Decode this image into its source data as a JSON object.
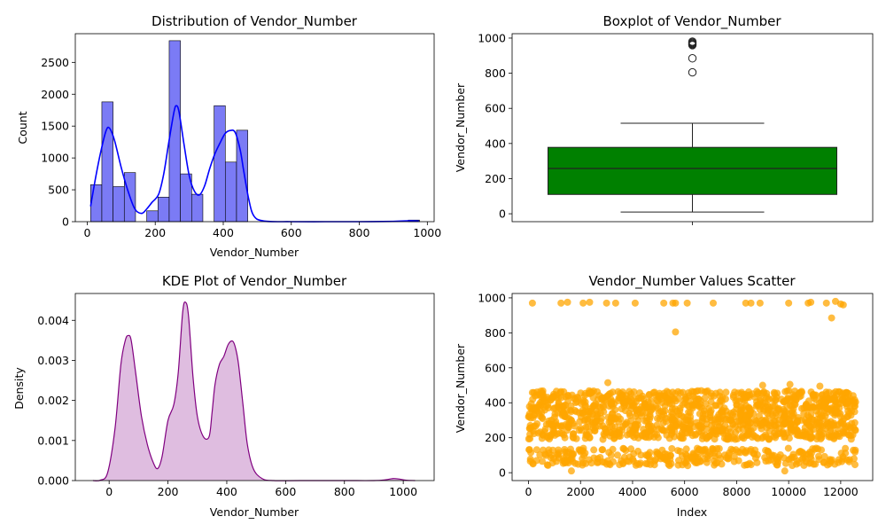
{
  "colors": {
    "hist_bar": "#7b7bf5",
    "hist_kde_line": "#0000ff",
    "box_fill": "#008000",
    "kde_fill": "#dfbde0",
    "kde_line": "#800080",
    "scatter_point": "#ffa500"
  },
  "chart_data": [
    {
      "type": "histogram",
      "title": "Distribution of Vendor_Number",
      "xlabel": "Vendor_Number",
      "ylabel": "Count",
      "xlim": [
        -35,
        1020
      ],
      "ylim": [
        0,
        2950
      ],
      "x_ticks": [
        0,
        200,
        400,
        600,
        800,
        1000
      ],
      "y_ticks": [
        0,
        500,
        1000,
        1500,
        2000,
        2500
      ],
      "bins": [
        {
          "x0": 10,
          "x1": 43,
          "count": 580
        },
        {
          "x0": 43,
          "x1": 76,
          "count": 1880
        },
        {
          "x0": 76,
          "x1": 109,
          "count": 550
        },
        {
          "x0": 109,
          "x1": 142,
          "count": 770
        },
        {
          "x0": 175,
          "x1": 208,
          "count": 170
        },
        {
          "x0": 208,
          "x1": 241,
          "count": 385
        },
        {
          "x0": 241,
          "x1": 274,
          "count": 2840
        },
        {
          "x0": 274,
          "x1": 307,
          "count": 750
        },
        {
          "x0": 307,
          "x1": 340,
          "count": 430
        },
        {
          "x0": 373,
          "x1": 406,
          "count": 1820
        },
        {
          "x0": 406,
          "x1": 439,
          "count": 935
        },
        {
          "x0": 439,
          "x1": 472,
          "count": 1435
        },
        {
          "x0": 944,
          "x1": 977,
          "count": 25
        }
      ],
      "kde_curve": {
        "x": [
          10,
          25,
          40,
          55,
          65,
          80,
          100,
          120,
          140,
          160,
          175,
          190,
          210,
          225,
          240,
          255,
          262,
          270,
          285,
          300,
          315,
          330,
          345,
          360,
          375,
          390,
          405,
          420,
          435,
          450,
          460,
          475,
          490,
          520,
          600,
          700,
          800,
          900,
          950,
          975
        ],
        "y": [
          240,
          700,
          1100,
          1420,
          1470,
          1280,
          850,
          480,
          200,
          130,
          200,
          300,
          430,
          750,
          1250,
          1720,
          1820,
          1720,
          1200,
          720,
          480,
          420,
          560,
          830,
          1060,
          1230,
          1380,
          1430,
          1400,
          1120,
          800,
          350,
          90,
          10,
          0,
          0,
          0,
          5,
          15,
          10
        ]
      }
    },
    {
      "type": "boxplot",
      "title": "Boxplot of Vendor_Number",
      "ylabel": "Vendor_Number",
      "ylim": [
        -45,
        1025
      ],
      "y_ticks": [
        0,
        200,
        400,
        600,
        800,
        1000
      ],
      "stats": {
        "min": 10,
        "q1": 110,
        "median": 258,
        "q3": 378,
        "max": 515
      },
      "outliers": [
        805,
        885,
        960,
        965,
        970,
        975,
        980
      ]
    },
    {
      "type": "area",
      "title": "KDE Plot of Vendor_Number",
      "xlabel": "Vendor_Number",
      "ylabel": "Density",
      "xlim": [
        -115,
        1105
      ],
      "ylim": [
        0,
        0.00467
      ],
      "x_ticks": [
        0,
        200,
        400,
        600,
        800,
        1000
      ],
      "y_ticks": [
        0.0,
        0.001,
        0.002,
        0.003,
        0.004
      ],
      "y_tick_labels": [
        "0.000",
        "0.001",
        "0.002",
        "0.003",
        "0.004"
      ],
      "x": [
        -55,
        -30,
        -5,
        20,
        40,
        55,
        65,
        75,
        90,
        110,
        130,
        150,
        165,
        180,
        200,
        220,
        235,
        250,
        260,
        270,
        285,
        300,
        320,
        340,
        350,
        360,
        375,
        390,
        405,
        420,
        430,
        440,
        455,
        470,
        490,
        520,
        560,
        650,
        800,
        900,
        940,
        965,
        985,
        1010,
        1040
      ],
      "y": [
        0.0,
        1e-05,
        0.0002,
        0.0013,
        0.0029,
        0.0035,
        0.00362,
        0.0035,
        0.0027,
        0.0016,
        0.0009,
        0.00045,
        0.0003,
        0.0006,
        0.0015,
        0.0019,
        0.0027,
        0.0042,
        0.00445,
        0.0041,
        0.0026,
        0.0016,
        0.0011,
        0.0011,
        0.0017,
        0.0024,
        0.0029,
        0.0031,
        0.0034,
        0.00348,
        0.0033,
        0.0029,
        0.0019,
        0.0009,
        0.0003,
        5e-05,
        0.0,
        0.0,
        0.0,
        0.0,
        2e-05,
        5e-05,
        4e-05,
        1e-05,
        0.0
      ]
    },
    {
      "type": "scatter",
      "title": "Vendor_Number Values Scatter",
      "xlabel": "Index",
      "ylabel": "Vendor_Number",
      "xlim": [
        -630,
        13230
      ],
      "ylim": [
        -45,
        1025
      ],
      "x_ticks": [
        0,
        2000,
        4000,
        6000,
        8000,
        10000,
        12000
      ],
      "y_ticks": [
        0,
        200,
        400,
        600,
        800,
        1000
      ],
      "x_range": [
        0,
        12600
      ],
      "dense_bands": [
        [
          40,
          140
        ],
        [
          190,
          470
        ]
      ],
      "outliers": [
        {
          "x": 150,
          "y": 970
        },
        {
          "x": 1250,
          "y": 970
        },
        {
          "x": 1500,
          "y": 975
        },
        {
          "x": 2100,
          "y": 970
        },
        {
          "x": 2350,
          "y": 975
        },
        {
          "x": 3000,
          "y": 970
        },
        {
          "x": 3350,
          "y": 970
        },
        {
          "x": 4100,
          "y": 970
        },
        {
          "x": 5200,
          "y": 970
        },
        {
          "x": 5550,
          "y": 970
        },
        {
          "x": 5650,
          "y": 970
        },
        {
          "x": 6100,
          "y": 970
        },
        {
          "x": 7100,
          "y": 970
        },
        {
          "x": 8350,
          "y": 970
        },
        {
          "x": 8550,
          "y": 970
        },
        {
          "x": 8900,
          "y": 970
        },
        {
          "x": 10000,
          "y": 970
        },
        {
          "x": 10750,
          "y": 970
        },
        {
          "x": 10850,
          "y": 975
        },
        {
          "x": 11450,
          "y": 970
        },
        {
          "x": 11800,
          "y": 980
        },
        {
          "x": 12000,
          "y": 965
        },
        {
          "x": 12100,
          "y": 960
        },
        {
          "x": 11650,
          "y": 885
        },
        {
          "x": 5650,
          "y": 805
        },
        {
          "x": 3050,
          "y": 515
        },
        {
          "x": 10050,
          "y": 505
        },
        {
          "x": 11200,
          "y": 495
        },
        {
          "x": 9000,
          "y": 500
        },
        {
          "x": 1650,
          "y": 10
        },
        {
          "x": 9850,
          "y": 10
        }
      ]
    }
  ]
}
